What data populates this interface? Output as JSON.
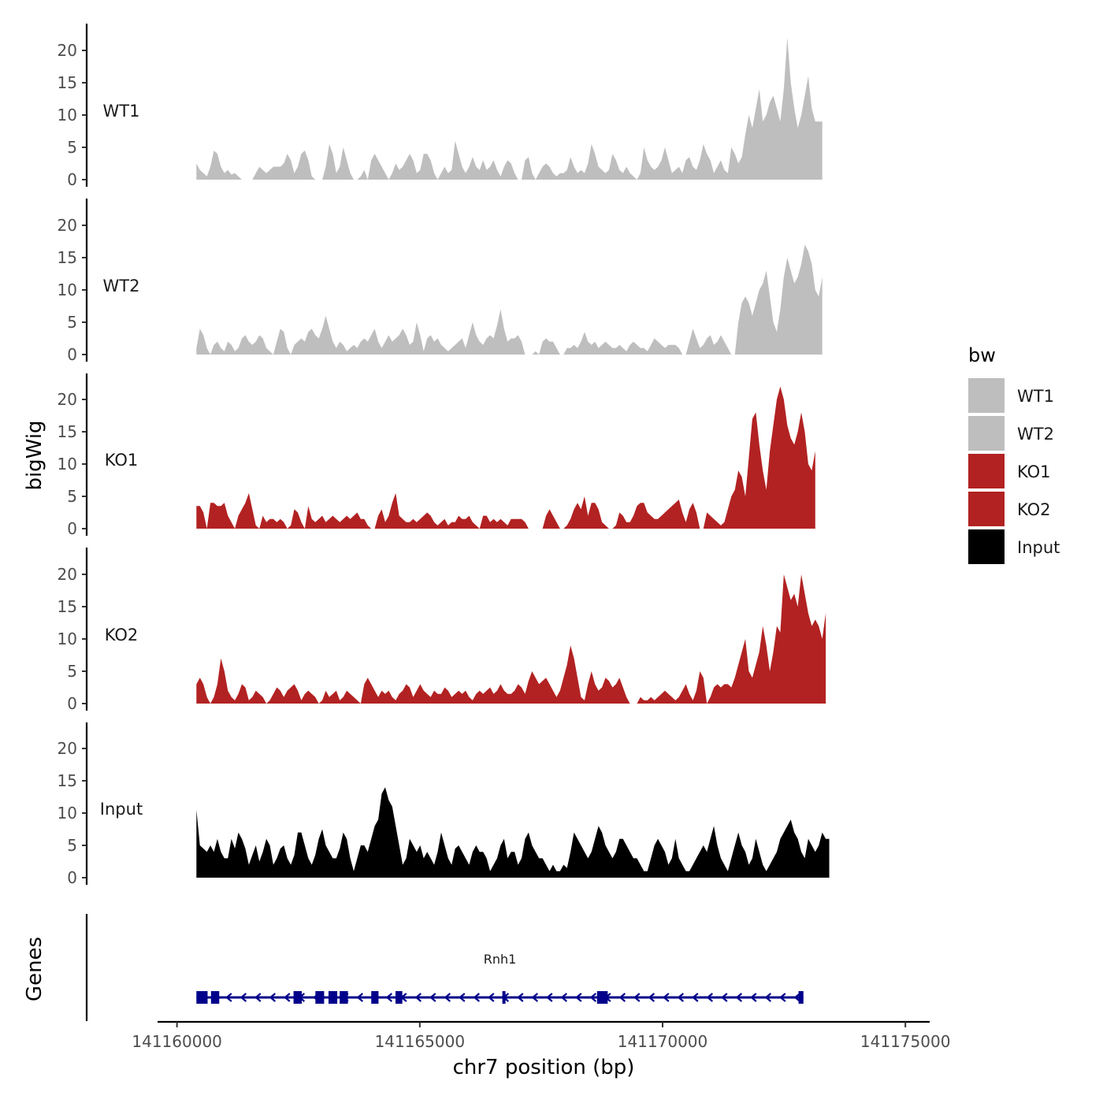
{
  "chart_data": {
    "type": "area",
    "title": "",
    "xlabel": "chr7 position (bp)",
    "ylabel": "bigWig",
    "genes_label": "Genes",
    "xlim": [
      141159600,
      141175500
    ],
    "x_ticks": [
      141160000,
      141165000,
      141170000,
      141175000
    ],
    "x_tick_labels": [
      "141160000",
      "141165000",
      "141170000",
      "141175000"
    ],
    "ylim": [
      0,
      24
    ],
    "y_ticks": [
      0,
      5,
      10,
      15,
      20
    ],
    "y_tick_labels": [
      "0",
      "5",
      "10",
      "15",
      "20"
    ],
    "grid": false,
    "legend": {
      "title": "bw",
      "position": "right",
      "entries": [
        {
          "label": "WT1",
          "color": "#BEBEBE"
        },
        {
          "label": "WT2",
          "color": "#BEBEBE"
        },
        {
          "label": "KO1",
          "color": "#B22222"
        },
        {
          "label": "KO2",
          "color": "#B22222"
        },
        {
          "label": "Input",
          "color": "#000000"
        }
      ]
    },
    "track_start": 141160400,
    "track_step": 72,
    "tracks": [
      {
        "name": "WT1",
        "color": "#BEBEBE",
        "values": [
          2.5,
          1.5,
          1,
          0.5,
          2,
          4.5,
          4,
          2,
          1,
          1.5,
          0.8,
          1,
          0.5,
          0,
          0,
          0,
          0,
          1,
          2,
          1.5,
          1,
          1.5,
          2,
          2,
          2,
          2.5,
          4,
          3,
          1,
          2,
          4,
          4.5,
          3,
          0.5,
          0,
          0,
          0,
          2,
          5.5,
          4,
          1,
          2,
          5,
          3,
          1,
          0,
          0,
          0.5,
          1.5,
          0,
          3,
          4,
          3,
          2,
          1,
          0,
          1,
          2.5,
          1.5,
          2,
          3,
          4,
          3,
          1,
          1.5,
          4,
          4,
          3,
          1,
          0,
          1,
          2,
          1,
          1.5,
          6,
          4,
          2,
          1,
          2,
          3.5,
          2,
          1.5,
          3,
          1.5,
          2,
          3,
          1.5,
          0.5,
          2,
          3,
          2.5,
          1,
          0,
          0,
          3,
          3.5,
          1,
          0,
          1,
          2,
          2.5,
          2,
          1,
          0.5,
          1,
          1,
          1.5,
          3.5,
          2,
          1,
          1.5,
          1,
          2.5,
          5.5,
          4,
          2,
          1.5,
          1,
          1.5,
          4,
          3,
          1.5,
          1,
          2,
          1,
          0.5,
          0,
          1,
          5,
          3,
          2,
          1.5,
          2,
          3,
          5,
          3,
          1,
          1.5,
          2,
          1,
          3,
          3.5,
          2,
          1.5,
          3,
          5.5,
          4,
          3,
          1,
          2,
          3,
          1.5,
          1,
          5,
          4,
          2.5,
          3.5,
          7,
          10,
          8,
          11,
          14,
          9,
          10,
          12,
          13,
          11,
          9,
          14,
          22,
          15,
          11,
          8,
          10,
          13,
          16,
          11,
          9,
          9,
          9
        ]
      },
      {
        "name": "WT2",
        "color": "#BEBEBE",
        "values": [
          1,
          4,
          3,
          1,
          0,
          1.5,
          2,
          1,
          0.5,
          2,
          1.5,
          0.5,
          1,
          2.5,
          3,
          2,
          1.5,
          2,
          3,
          2.5,
          1,
          0.5,
          0,
          2,
          4,
          3.5,
          1,
          0,
          1.5,
          2,
          2.5,
          2,
          3.5,
          4,
          3,
          2.5,
          4,
          6,
          4,
          2,
          1,
          2,
          1.5,
          0.5,
          1,
          1.5,
          1,
          2,
          2.5,
          2,
          3,
          4,
          2,
          1,
          2,
          3,
          2,
          2.5,
          3,
          4,
          3,
          1.5,
          2,
          5,
          3,
          0.5,
          2.5,
          3,
          2,
          2.5,
          1.5,
          1,
          0.5,
          1,
          1.5,
          2,
          2.5,
          1,
          3,
          5,
          3,
          2,
          1.5,
          2.5,
          3,
          2.5,
          4.5,
          7,
          4,
          2,
          2.5,
          2.5,
          3,
          2,
          0,
          0,
          0,
          0.5,
          0,
          2,
          2.5,
          2,
          2,
          1,
          0,
          0,
          1,
          1,
          1.5,
          1,
          2,
          3.5,
          2,
          1.5,
          2,
          1,
          1.5,
          2,
          1.5,
          1,
          1,
          1.5,
          1,
          0.5,
          1.5,
          2,
          1.5,
          1,
          1,
          0.5,
          1.5,
          2.5,
          2,
          1.5,
          1,
          1.5,
          1.5,
          1.5,
          1,
          0,
          0,
          2,
          4,
          2.5,
          1,
          1.5,
          2.5,
          3,
          1.5,
          2,
          3,
          2,
          1,
          0,
          0,
          5,
          8,
          9,
          8,
          6,
          8,
          10,
          11,
          13,
          9,
          5,
          3.5,
          7,
          12,
          15,
          13,
          11,
          12,
          14,
          17,
          16,
          14,
          10,
          9,
          12
        ]
      },
      {
        "name": "KO1",
        "color": "#B22222",
        "values": [
          3.5,
          3.5,
          2.5,
          0,
          4,
          4,
          3.5,
          3.5,
          4,
          2,
          1,
          0,
          2,
          3,
          4,
          5.5,
          3,
          0.5,
          0,
          2,
          1,
          1.5,
          1.5,
          1,
          1.5,
          1,
          0,
          0.5,
          3,
          2.5,
          1,
          0,
          3.5,
          1.5,
          1,
          1.5,
          2,
          1,
          1.5,
          2,
          1.5,
          1,
          1.5,
          2,
          1.5,
          2,
          2.5,
          1.5,
          1.5,
          0.5,
          0,
          0,
          2,
          3,
          1,
          2,
          4,
          5.5,
          2,
          1.5,
          1,
          1,
          1.5,
          1,
          1.5,
          2,
          2.5,
          2,
          1,
          0.5,
          1,
          1.5,
          0.5,
          1,
          1,
          2,
          1.5,
          1.5,
          2,
          1,
          0.5,
          0,
          2,
          2,
          1,
          1.5,
          1,
          1.5,
          1,
          0.5,
          1.5,
          1.5,
          1.5,
          1.5,
          1,
          0,
          0,
          0,
          0,
          0,
          2,
          3,
          2,
          1,
          0,
          0,
          0.5,
          1.5,
          3,
          4,
          3,
          5,
          2,
          4,
          4,
          3,
          1,
          0.5,
          0,
          0,
          0.5,
          2.5,
          2,
          1,
          1,
          2,
          3.5,
          4,
          4,
          2.5,
          2,
          1.5,
          1.5,
          2,
          2.5,
          3,
          3.5,
          4,
          4.5,
          2.5,
          1,
          3,
          4,
          2.5,
          0,
          0,
          2.5,
          2,
          1.5,
          1,
          0.5,
          1,
          3,
          5,
          6,
          9,
          8,
          5,
          11,
          17,
          18,
          13,
          9,
          6,
          12,
          16,
          20,
          22,
          20,
          16,
          14,
          13,
          15,
          18,
          15,
          10,
          9,
          12
        ]
      },
      {
        "name": "KO2",
        "color": "#B22222",
        "values": [
          3,
          4,
          3,
          1,
          0,
          1,
          3,
          7,
          5,
          2,
          1,
          0.5,
          1.5,
          3,
          2.5,
          0.5,
          1,
          2,
          1.5,
          1,
          0,
          0.5,
          1.5,
          2.5,
          2,
          1,
          2,
          2.5,
          3,
          2,
          0.5,
          1.5,
          2,
          1.5,
          1,
          0,
          0.5,
          2,
          1,
          1.5,
          2,
          0.5,
          1,
          2,
          1.5,
          1,
          0.5,
          0,
          3,
          4,
          3,
          2,
          1,
          2,
          1.5,
          2,
          1,
          0.5,
          1.5,
          2,
          3,
          2.5,
          1,
          2,
          3,
          2,
          1.5,
          1,
          2,
          1.5,
          1.5,
          2.5,
          2,
          1,
          1.5,
          2,
          1.5,
          2,
          1,
          0.5,
          1.5,
          2,
          1.5,
          2,
          2.5,
          1.5,
          2,
          3,
          2,
          1.5,
          1.5,
          2,
          3,
          2.5,
          1.5,
          3.5,
          5,
          4,
          3,
          3.5,
          4,
          3,
          2,
          1,
          2,
          4,
          6,
          9,
          7,
          4,
          1,
          0.5,
          3,
          5,
          3,
          2,
          2.5,
          4,
          3.5,
          2.5,
          3,
          4,
          2.5,
          1,
          0,
          0,
          0,
          1,
          0.5,
          0.5,
          1,
          0.5,
          1,
          1.5,
          2,
          1.5,
          1,
          0.5,
          1,
          2,
          3,
          1.5,
          0.5,
          2,
          5,
          4,
          0,
          1,
          2.5,
          3,
          2.5,
          3,
          3,
          2.5,
          4,
          6,
          8,
          10,
          5,
          4,
          6,
          8,
          12,
          9,
          5,
          8,
          12,
          11,
          20,
          18,
          16,
          17,
          15,
          20,
          17,
          14,
          12,
          13,
          12,
          10,
          14
        ]
      },
      {
        "name": "Input",
        "color": "#000000",
        "values": [
          10.5,
          5,
          4.5,
          4,
          5,
          4,
          6,
          4,
          3,
          3,
          6,
          4.5,
          7,
          6,
          4.5,
          2,
          3.5,
          5,
          2.5,
          4,
          6,
          5,
          2,
          3,
          4.5,
          5,
          3,
          2,
          3.5,
          7,
          7,
          5,
          3,
          2,
          3.5,
          6,
          7.5,
          5,
          4,
          3,
          3,
          4.5,
          7,
          6,
          3,
          1,
          3,
          5,
          5,
          4,
          6,
          8,
          9,
          13,
          14,
          12,
          11,
          8,
          5,
          2,
          3,
          6,
          5,
          4,
          5,
          3,
          4,
          3,
          2,
          4,
          7,
          5,
          3,
          2,
          4.5,
          5,
          4,
          3,
          2,
          4,
          5,
          4,
          4,
          3,
          1,
          2,
          3,
          5,
          6,
          3,
          4,
          4,
          2,
          3,
          6,
          7,
          5,
          4,
          3,
          3,
          2,
          1,
          2,
          1,
          1,
          2,
          1.5,
          4,
          7,
          6,
          5,
          4,
          3,
          4,
          6,
          8,
          7,
          5,
          4,
          3,
          4,
          6,
          6,
          5,
          4,
          3,
          3,
          2,
          1,
          1,
          3,
          5,
          6,
          5,
          4,
          2,
          3,
          6,
          3,
          2,
          1,
          1,
          2,
          3,
          4,
          5,
          4,
          6,
          8,
          5,
          3,
          2,
          1,
          3,
          5,
          7,
          5,
          4,
          2,
          3,
          6,
          4,
          2,
          1,
          2,
          3,
          4,
          6,
          7,
          8,
          9,
          7,
          6,
          4,
          3,
          6,
          5,
          4,
          5,
          7,
          6,
          6
        ]
      }
    ],
    "genes": [
      {
        "name": "Rnh1",
        "start": 141160400,
        "end": 141172900,
        "strand": "-",
        "color": "#00008B",
        "exons": [
          [
            141160400,
            141160630
          ],
          [
            141160700,
            141160870
          ],
          [
            141162400,
            141162570
          ],
          [
            141162850,
            141163030
          ],
          [
            141163120,
            141163300
          ],
          [
            141163350,
            141163520
          ],
          [
            141164000,
            141164150
          ],
          [
            141164500,
            141164640
          ],
          [
            141166700,
            141166760
          ],
          [
            141168650,
            141168870
          ],
          [
            141172800,
            141172900
          ]
        ]
      }
    ]
  }
}
